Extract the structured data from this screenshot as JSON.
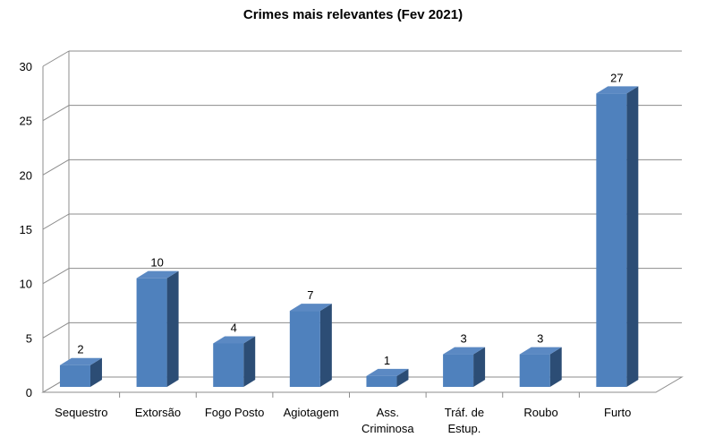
{
  "chart_data": {
    "type": "bar",
    "title": "Crimes mais relevantes (Fev 2021)",
    "categories": [
      [
        "Sequestro"
      ],
      [
        "Extorsão"
      ],
      [
        "Fogo Posto"
      ],
      [
        "Agiotagem"
      ],
      [
        "Ass.",
        "Criminosa"
      ],
      [
        "Tráf. de",
        "Estup."
      ],
      [
        "Roubo"
      ],
      [
        "Furto"
      ]
    ],
    "values": [
      2,
      10,
      4,
      7,
      1,
      3,
      3,
      27
    ],
    "data_labels": [
      "2",
      "10",
      "4",
      "7",
      "1",
      "3",
      "3",
      "27"
    ],
    "ylim": [
      0,
      30
    ],
    "yticks": [
      0,
      5,
      10,
      15,
      20,
      25,
      30
    ],
    "grid": true,
    "style": "3d-column",
    "colors": {
      "bar_front": "#4f81bd",
      "bar_top": "#5b89c3",
      "bar_side": "#2c4d75",
      "grid": "#8c8c8c",
      "text": "#000000"
    }
  }
}
